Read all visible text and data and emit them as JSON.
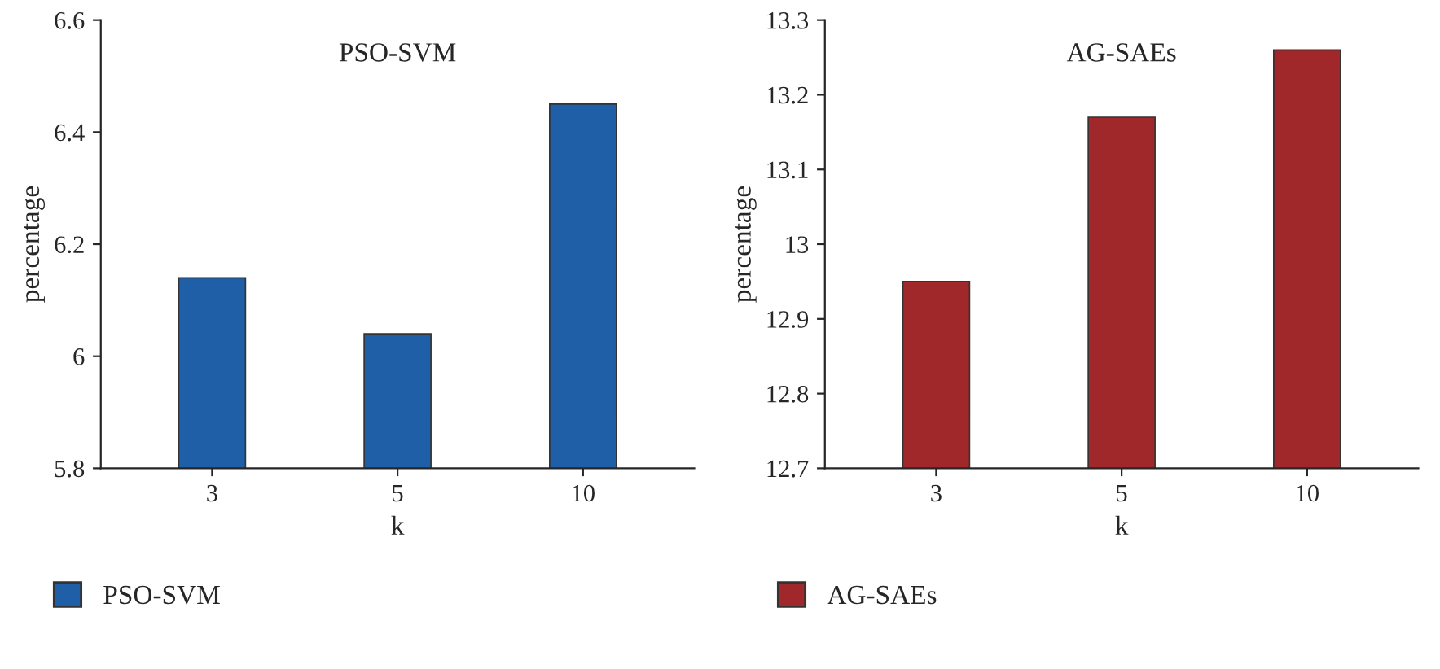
{
  "chart_data": [
    {
      "type": "bar",
      "title": "PSO-SVM",
      "xlabel": "k",
      "ylabel": "percentage",
      "categories": [
        "3",
        "5",
        "10"
      ],
      "series": [
        {
          "name": "PSO-SVM",
          "color": "#1f5fa8",
          "values": [
            6.14,
            6.04,
            6.45
          ]
        }
      ],
      "ylim": [
        5.8,
        6.6
      ],
      "yticks": [
        5.8,
        6,
        6.2,
        6.4,
        6.6
      ],
      "legend": "bottom left",
      "grid": false
    },
    {
      "type": "bar",
      "title": "AG-SAEs",
      "xlabel": "k",
      "ylabel": "percentage",
      "categories": [
        "3",
        "5",
        "10"
      ],
      "series": [
        {
          "name": "AG-SAEs",
          "color": "#a0282a",
          "values": [
            12.95,
            13.17,
            13.26
          ]
        }
      ],
      "ylim": [
        12.7,
        13.3
      ],
      "yticks": [
        12.7,
        12.8,
        12.9,
        13,
        13.1,
        13.2,
        13.3
      ],
      "legend": "bottom left",
      "grid": false
    }
  ]
}
